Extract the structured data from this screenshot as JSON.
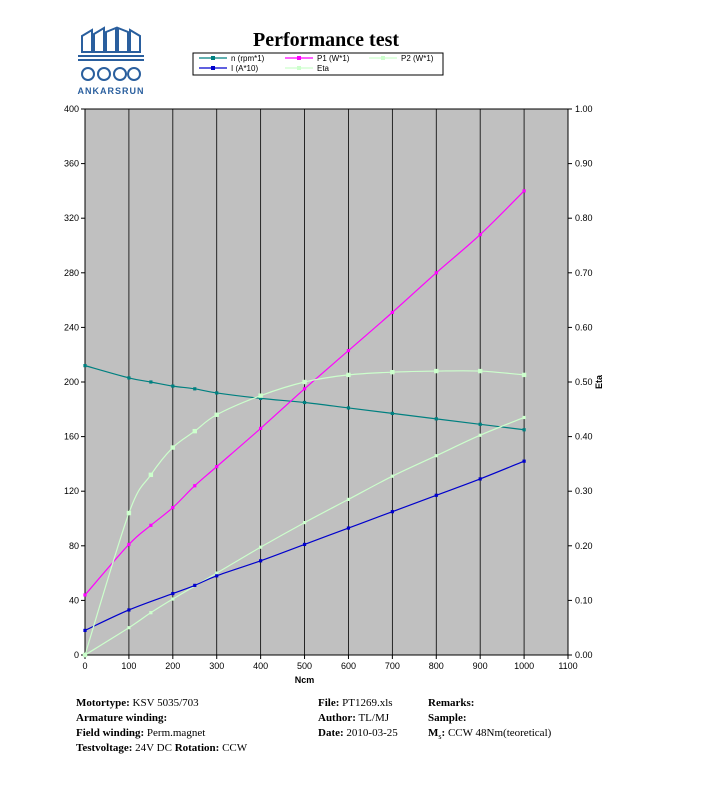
{
  "brand": {
    "name": "ANKARSRUN",
    "color": "#2a5f9e"
  },
  "chart_data": {
    "type": "line",
    "title": "Performance test",
    "xlabel": "Ncm",
    "ylabel_right": "Eta",
    "xlim": [
      0,
      1100
    ],
    "ylim_left": [
      0,
      400
    ],
    "ylim_right": [
      0,
      1.0
    ],
    "x_ticks": [
      "0",
      "100",
      "200",
      "300",
      "400",
      "500",
      "600",
      "700",
      "800",
      "900",
      "1000",
      "1100"
    ],
    "y_left_ticks": [
      "0",
      "40",
      "80",
      "120",
      "160",
      "200",
      "240",
      "280",
      "320",
      "360",
      "400"
    ],
    "y_right_ticks": [
      "0.00",
      "0.10",
      "0.20",
      "0.30",
      "0.40",
      "0.50",
      "0.60",
      "0.70",
      "0.80",
      "0.90",
      "1.00"
    ],
    "grid": true,
    "plot_background": "#c0c0c0",
    "legend_position": "top-center",
    "series": [
      {
        "name": "n (rpm*1)",
        "color": "#008080",
        "axis": "left",
        "x": [
          0,
          100,
          150,
          200,
          250,
          300,
          400,
          500,
          600,
          700,
          800,
          900,
          1000
        ],
        "y": [
          212,
          203,
          200,
          197,
          195,
          192,
          188,
          185,
          181,
          177,
          173,
          169,
          165
        ]
      },
      {
        "name": "P1 (W*1)",
        "color": "#ff00ff",
        "axis": "left",
        "x": [
          0,
          100,
          150,
          200,
          250,
          300,
          400,
          500,
          600,
          700,
          800,
          900,
          1000
        ],
        "y": [
          44,
          81,
          95,
          108,
          124,
          138,
          166,
          195,
          223,
          251,
          280,
          308,
          340
        ]
      },
      {
        "name": "P2 (W*1)",
        "color": "#ccffcc",
        "axis": "left",
        "x": [
          0,
          100,
          150,
          200,
          300,
          400,
          500,
          600,
          700,
          800,
          900,
          1000
        ],
        "y": [
          0,
          20,
          31,
          41,
          60,
          79,
          97,
          114,
          131,
          146,
          161,
          174
        ]
      },
      {
        "name": "I (A*10)",
        "color": "#0000cc",
        "axis": "left",
        "x": [
          0,
          100,
          200,
          250,
          300,
          400,
          500,
          600,
          700,
          800,
          900,
          1000
        ],
        "y": [
          18,
          33,
          45,
          51,
          58,
          69,
          81,
          93,
          105,
          117,
          129,
          142
        ]
      },
      {
        "name": "Eta",
        "color": "#ccffcc",
        "axis": "right",
        "x": [
          0,
          100,
          150,
          200,
          250,
          300,
          400,
          500,
          600,
          700,
          800,
          900,
          1000
        ],
        "y": [
          0.0,
          0.26,
          0.33,
          0.38,
          0.41,
          0.44,
          0.475,
          0.5,
          0.513,
          0.518,
          0.52,
          0.52,
          0.513
        ]
      }
    ]
  },
  "info": {
    "motortype_label": "Motortype:",
    "motortype_value": "KSV 5035/703",
    "armature_label": "Armature winding:",
    "field_label": "Field winding:",
    "field_value": "Perm.magnet",
    "testvoltage_label": "Testvoltage:",
    "testvoltage_value": "24V DC",
    "rotation_label": "Rotation:",
    "rotation_value": "CCW",
    "file_label": "File:",
    "file_value": "PT1269.xls",
    "author_label": "Author:",
    "author_value": "TL/MJ",
    "date_label": "Date:",
    "date_value": "2010-03-25",
    "remarks_label": "Remarks:",
    "sample_label": "Sample:",
    "ms_label": "M",
    "ms_sub": "s",
    "ms_sep": ":",
    "ms_value": "CCW 48Nm(teoretical)"
  }
}
